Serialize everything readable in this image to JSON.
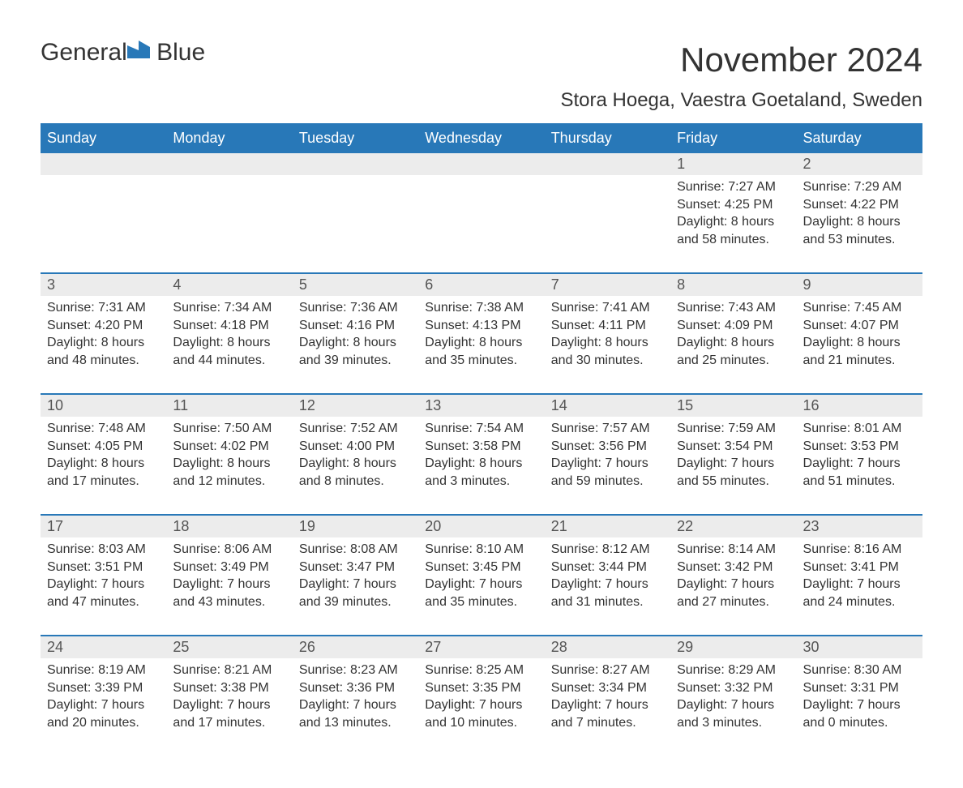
{
  "brand": {
    "name1": "General",
    "name2": "Blue",
    "accent": "#2878b8"
  },
  "title": "November 2024",
  "location": "Stora Hoega, Vaestra Goetaland, Sweden",
  "day_names": [
    "Sunday",
    "Monday",
    "Tuesday",
    "Wednesday",
    "Thursday",
    "Friday",
    "Saturday"
  ],
  "colors": {
    "header_bg": "#2878b8",
    "header_text": "#ffffff",
    "daynum_bg": "#ececec",
    "text": "#333333",
    "rule": "#2878b8",
    "background": "#ffffff"
  },
  "typography": {
    "title_fontsize": 42,
    "location_fontsize": 24,
    "header_fontsize": 18,
    "body_fontsize": 16
  },
  "weeks": [
    [
      null,
      null,
      null,
      null,
      null,
      {
        "day": "1",
        "sunrise": "Sunrise: 7:27 AM",
        "sunset": "Sunset: 4:25 PM",
        "daylight1": "Daylight: 8 hours",
        "daylight2": "and 58 minutes."
      },
      {
        "day": "2",
        "sunrise": "Sunrise: 7:29 AM",
        "sunset": "Sunset: 4:22 PM",
        "daylight1": "Daylight: 8 hours",
        "daylight2": "and 53 minutes."
      }
    ],
    [
      {
        "day": "3",
        "sunrise": "Sunrise: 7:31 AM",
        "sunset": "Sunset: 4:20 PM",
        "daylight1": "Daylight: 8 hours",
        "daylight2": "and 48 minutes."
      },
      {
        "day": "4",
        "sunrise": "Sunrise: 7:34 AM",
        "sunset": "Sunset: 4:18 PM",
        "daylight1": "Daylight: 8 hours",
        "daylight2": "and 44 minutes."
      },
      {
        "day": "5",
        "sunrise": "Sunrise: 7:36 AM",
        "sunset": "Sunset: 4:16 PM",
        "daylight1": "Daylight: 8 hours",
        "daylight2": "and 39 minutes."
      },
      {
        "day": "6",
        "sunrise": "Sunrise: 7:38 AM",
        "sunset": "Sunset: 4:13 PM",
        "daylight1": "Daylight: 8 hours",
        "daylight2": "and 35 minutes."
      },
      {
        "day": "7",
        "sunrise": "Sunrise: 7:41 AM",
        "sunset": "Sunset: 4:11 PM",
        "daylight1": "Daylight: 8 hours",
        "daylight2": "and 30 minutes."
      },
      {
        "day": "8",
        "sunrise": "Sunrise: 7:43 AM",
        "sunset": "Sunset: 4:09 PM",
        "daylight1": "Daylight: 8 hours",
        "daylight2": "and 25 minutes."
      },
      {
        "day": "9",
        "sunrise": "Sunrise: 7:45 AM",
        "sunset": "Sunset: 4:07 PM",
        "daylight1": "Daylight: 8 hours",
        "daylight2": "and 21 minutes."
      }
    ],
    [
      {
        "day": "10",
        "sunrise": "Sunrise: 7:48 AM",
        "sunset": "Sunset: 4:05 PM",
        "daylight1": "Daylight: 8 hours",
        "daylight2": "and 17 minutes."
      },
      {
        "day": "11",
        "sunrise": "Sunrise: 7:50 AM",
        "sunset": "Sunset: 4:02 PM",
        "daylight1": "Daylight: 8 hours",
        "daylight2": "and 12 minutes."
      },
      {
        "day": "12",
        "sunrise": "Sunrise: 7:52 AM",
        "sunset": "Sunset: 4:00 PM",
        "daylight1": "Daylight: 8 hours",
        "daylight2": "and 8 minutes."
      },
      {
        "day": "13",
        "sunrise": "Sunrise: 7:54 AM",
        "sunset": "Sunset: 3:58 PM",
        "daylight1": "Daylight: 8 hours",
        "daylight2": "and 3 minutes."
      },
      {
        "day": "14",
        "sunrise": "Sunrise: 7:57 AM",
        "sunset": "Sunset: 3:56 PM",
        "daylight1": "Daylight: 7 hours",
        "daylight2": "and 59 minutes."
      },
      {
        "day": "15",
        "sunrise": "Sunrise: 7:59 AM",
        "sunset": "Sunset: 3:54 PM",
        "daylight1": "Daylight: 7 hours",
        "daylight2": "and 55 minutes."
      },
      {
        "day": "16",
        "sunrise": "Sunrise: 8:01 AM",
        "sunset": "Sunset: 3:53 PM",
        "daylight1": "Daylight: 7 hours",
        "daylight2": "and 51 minutes."
      }
    ],
    [
      {
        "day": "17",
        "sunrise": "Sunrise: 8:03 AM",
        "sunset": "Sunset: 3:51 PM",
        "daylight1": "Daylight: 7 hours",
        "daylight2": "and 47 minutes."
      },
      {
        "day": "18",
        "sunrise": "Sunrise: 8:06 AM",
        "sunset": "Sunset: 3:49 PM",
        "daylight1": "Daylight: 7 hours",
        "daylight2": "and 43 minutes."
      },
      {
        "day": "19",
        "sunrise": "Sunrise: 8:08 AM",
        "sunset": "Sunset: 3:47 PM",
        "daylight1": "Daylight: 7 hours",
        "daylight2": "and 39 minutes."
      },
      {
        "day": "20",
        "sunrise": "Sunrise: 8:10 AM",
        "sunset": "Sunset: 3:45 PM",
        "daylight1": "Daylight: 7 hours",
        "daylight2": "and 35 minutes."
      },
      {
        "day": "21",
        "sunrise": "Sunrise: 8:12 AM",
        "sunset": "Sunset: 3:44 PM",
        "daylight1": "Daylight: 7 hours",
        "daylight2": "and 31 minutes."
      },
      {
        "day": "22",
        "sunrise": "Sunrise: 8:14 AM",
        "sunset": "Sunset: 3:42 PM",
        "daylight1": "Daylight: 7 hours",
        "daylight2": "and 27 minutes."
      },
      {
        "day": "23",
        "sunrise": "Sunrise: 8:16 AM",
        "sunset": "Sunset: 3:41 PM",
        "daylight1": "Daylight: 7 hours",
        "daylight2": "and 24 minutes."
      }
    ],
    [
      {
        "day": "24",
        "sunrise": "Sunrise: 8:19 AM",
        "sunset": "Sunset: 3:39 PM",
        "daylight1": "Daylight: 7 hours",
        "daylight2": "and 20 minutes."
      },
      {
        "day": "25",
        "sunrise": "Sunrise: 8:21 AM",
        "sunset": "Sunset: 3:38 PM",
        "daylight1": "Daylight: 7 hours",
        "daylight2": "and 17 minutes."
      },
      {
        "day": "26",
        "sunrise": "Sunrise: 8:23 AM",
        "sunset": "Sunset: 3:36 PM",
        "daylight1": "Daylight: 7 hours",
        "daylight2": "and 13 minutes."
      },
      {
        "day": "27",
        "sunrise": "Sunrise: 8:25 AM",
        "sunset": "Sunset: 3:35 PM",
        "daylight1": "Daylight: 7 hours",
        "daylight2": "and 10 minutes."
      },
      {
        "day": "28",
        "sunrise": "Sunrise: 8:27 AM",
        "sunset": "Sunset: 3:34 PM",
        "daylight1": "Daylight: 7 hours",
        "daylight2": "and 7 minutes."
      },
      {
        "day": "29",
        "sunrise": "Sunrise: 8:29 AM",
        "sunset": "Sunset: 3:32 PM",
        "daylight1": "Daylight: 7 hours",
        "daylight2": "and 3 minutes."
      },
      {
        "day": "30",
        "sunrise": "Sunrise: 8:30 AM",
        "sunset": "Sunset: 3:31 PM",
        "daylight1": "Daylight: 7 hours",
        "daylight2": "and 0 minutes."
      }
    ]
  ]
}
